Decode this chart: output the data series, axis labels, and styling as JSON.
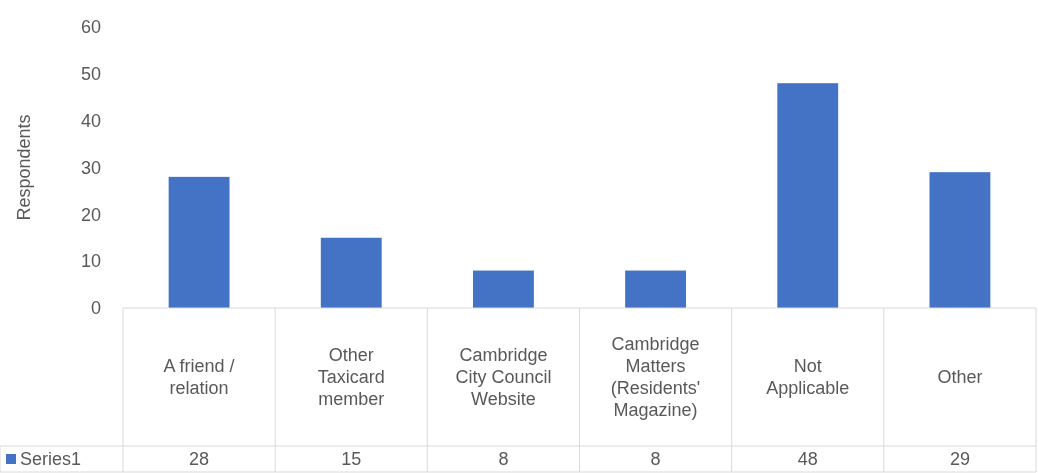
{
  "chart_data": {
    "type": "bar",
    "ylabel": "Respondents",
    "categories": [
      "A friend / relation",
      "Other Taxicard member",
      "Cambridge City Council Website",
      "Cambridge Matters (Residents' Magazine)",
      "Not Applicable",
      "Other"
    ],
    "series": [
      {
        "name": "Series1",
        "color": "#4472c4",
        "values": [
          28,
          15,
          8,
          8,
          48,
          29
        ]
      }
    ],
    "ylim": [
      0,
      60
    ],
    "yticks": [
      0,
      10,
      20,
      30,
      40,
      50,
      60
    ],
    "data_labels": true,
    "legend": "bottom"
  }
}
